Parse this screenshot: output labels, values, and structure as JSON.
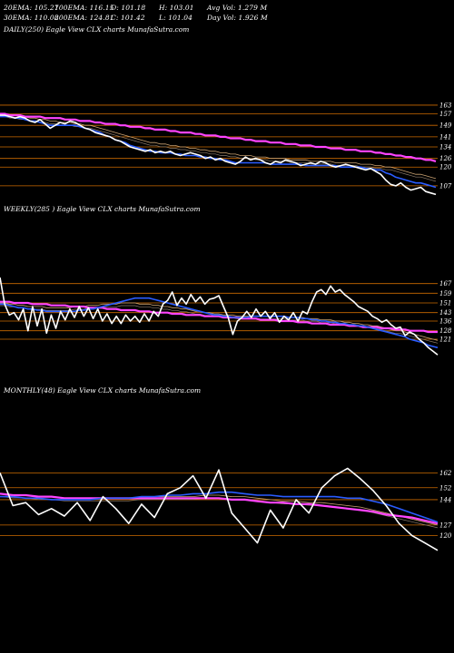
{
  "header": {
    "ema20": "20EMA: 105.27",
    "ema100": "100EMA: 116.15",
    "open": "O: 101.18",
    "high": "H: 103.01",
    "avg_vol": "Avg Vol: 1.279 M",
    "ema30": "30EMA: 110.08",
    "ema200": "200EMA: 124.81",
    "close": "C: 101.42",
    "low": "L: 101.04",
    "day_vol": "Day Vol: 1.926  M"
  },
  "panels": {
    "daily_title": "DAILY(250) Eagle  View  CLX  charts MunafaSutra.com",
    "weekly_title": "WEEKLY(285                    ) Eagle  View  CLX  charts MunafaSutra.com",
    "monthly_title": "MONTHLY(48) Eagle  View  CLX  charts MunafaSutra.com"
  },
  "colors": {
    "background": "#000000",
    "price": "#ffffff",
    "ema_fast": "#2a5cff",
    "ema_slow": "#ff44ff",
    "ema_mid": "#c8a070",
    "level_line": "#cc6a00"
  },
  "chart_data": [
    {
      "type": "line",
      "name": "daily",
      "ylim": [
        100,
        168
      ],
      "y_ticks": [
        163,
        157,
        149,
        141,
        134,
        126,
        120,
        107
      ],
      "series": [
        {
          "role": "price",
          "values": [
            156,
            156,
            155,
            154,
            155,
            154,
            152,
            151,
            153,
            150,
            147,
            149,
            151,
            150,
            152,
            151,
            149,
            147,
            146,
            144,
            143,
            142,
            141,
            139,
            138,
            136,
            134,
            133,
            132,
            131,
            132,
            130,
            131,
            130,
            131,
            129,
            128,
            129,
            130,
            129,
            128,
            126,
            127,
            125,
            126,
            124,
            123,
            122,
            124,
            127,
            125,
            126,
            125,
            123,
            122,
            124,
            123,
            125,
            124,
            123,
            121,
            122,
            123,
            122,
            124,
            123,
            121,
            120,
            121,
            122,
            121,
            120,
            119,
            118,
            119,
            117,
            115,
            111,
            108,
            107,
            109,
            106,
            104,
            105,
            106,
            103,
            102,
            101
          ]
        },
        {
          "role": "ema_fast",
          "values": [
            155,
            155,
            155,
            154,
            154,
            153,
            152,
            152,
            151,
            150,
            149,
            149,
            149,
            149,
            149,
            149,
            148,
            147,
            146,
            145,
            144,
            142,
            141,
            139,
            138,
            137,
            135,
            134,
            133,
            132,
            131,
            131,
            130,
            130,
            130,
            129,
            129,
            128,
            128,
            128,
            127,
            127,
            126,
            126,
            125,
            125,
            124,
            123,
            123,
            123,
            123,
            123,
            123,
            123,
            122,
            122,
            122,
            122,
            122,
            122,
            122,
            121,
            121,
            121,
            121,
            121,
            121,
            121,
            120,
            120,
            120,
            120,
            120,
            119,
            119,
            118,
            118,
            116,
            115,
            113,
            112,
            111,
            110,
            109,
            109,
            108,
            107,
            106
          ]
        },
        {
          "role": "ema_mid",
          "values": [
            157,
            157,
            156,
            156,
            155,
            155,
            154,
            154,
            153,
            153,
            152,
            152,
            151,
            151,
            151,
            150,
            150,
            149,
            149,
            148,
            147,
            146,
            145,
            144,
            143,
            142,
            141,
            140,
            139,
            138,
            137,
            137,
            136,
            136,
            135,
            135,
            134,
            134,
            133,
            133,
            132,
            132,
            131,
            131,
            130,
            130,
            129,
            129,
            128,
            128,
            128,
            127,
            127,
            127,
            126,
            126,
            126,
            126,
            125,
            125,
            125,
            125,
            124,
            124,
            124,
            124,
            124,
            123,
            123,
            123,
            123,
            123,
            122,
            122,
            122,
            121,
            121,
            120,
            120,
            119,
            118,
            117,
            116,
            115,
            115,
            114,
            113,
            112
          ]
        },
        {
          "role": "ema_slow",
          "values": [
            157,
            157,
            156,
            156,
            156,
            155,
            155,
            155,
            155,
            154,
            154,
            154,
            154,
            153,
            153,
            153,
            152,
            152,
            152,
            151,
            151,
            150,
            150,
            150,
            149,
            149,
            148,
            148,
            148,
            147,
            147,
            146,
            146,
            146,
            145,
            145,
            144,
            144,
            144,
            143,
            143,
            142,
            142,
            142,
            141,
            141,
            140,
            140,
            140,
            139,
            139,
            138,
            138,
            138,
            137,
            137,
            137,
            136,
            136,
            136,
            135,
            135,
            135,
            134,
            134,
            134,
            133,
            133,
            133,
            132,
            132,
            132,
            131,
            131,
            131,
            130,
            130,
            129,
            129,
            128,
            128,
            127,
            127,
            126,
            126,
            125,
            125,
            124
          ]
        }
      ]
    },
    {
      "type": "line",
      "name": "weekly",
      "ylim": [
        100,
        175
      ],
      "y_ticks": [
        167,
        159,
        151,
        143,
        136,
        128,
        121
      ],
      "series": [
        {
          "role": "price",
          "values": [
            172,
            150,
            141,
            143,
            137,
            146,
            128,
            148,
            132,
            146,
            126,
            141,
            130,
            144,
            137,
            146,
            139,
            148,
            140,
            147,
            138,
            146,
            136,
            142,
            134,
            140,
            134,
            141,
            136,
            140,
            135,
            142,
            136,
            144,
            140,
            150,
            153,
            160,
            149,
            155,
            150,
            158,
            152,
            156,
            150,
            154,
            155,
            157,
            148,
            139,
            125,
            136,
            139,
            144,
            139,
            146,
            140,
            144,
            138,
            143,
            135,
            140,
            137,
            143,
            136,
            144,
            142,
            152,
            160,
            162,
            158,
            165,
            160,
            162,
            158,
            155,
            152,
            148,
            146,
            144,
            140,
            138,
            135,
            137,
            133,
            130,
            131,
            124,
            127,
            125,
            121,
            118,
            114,
            111,
            108
          ]
        },
        {
          "role": "ema_fast",
          "values": [
            150,
            150,
            149,
            148,
            147,
            147,
            146,
            146,
            145,
            145,
            144,
            144,
            144,
            144,
            144,
            144,
            144,
            145,
            145,
            146,
            146,
            147,
            148,
            149,
            150,
            151,
            152,
            153,
            154,
            155,
            155,
            155,
            155,
            154,
            153,
            152,
            151,
            150,
            149,
            148,
            147,
            146,
            145,
            144,
            143,
            142,
            141,
            141,
            140,
            140,
            139,
            139,
            139,
            139,
            140,
            140,
            140,
            140,
            140,
            140,
            140,
            140,
            139,
            139,
            139,
            138,
            138,
            137,
            137,
            136,
            136,
            135,
            135,
            134,
            134,
            133,
            133,
            132,
            132,
            131,
            130,
            129,
            128,
            127,
            126,
            125,
            124,
            123,
            121,
            120,
            119,
            118,
            116,
            115,
            114
          ]
        },
        {
          "role": "ema_mid",
          "values": [
            151,
            151,
            150,
            150,
            149,
            149,
            148,
            148,
            148,
            148,
            147,
            147,
            147,
            147,
            147,
            147,
            148,
            148,
            148,
            149,
            149,
            149,
            150,
            150,
            150,
            150,
            151,
            151,
            151,
            151,
            150,
            150,
            150,
            149,
            149,
            148,
            148,
            147,
            147,
            146,
            146,
            145,
            144,
            144,
            143,
            143,
            142,
            142,
            141,
            141,
            141,
            140,
            140,
            140,
            140,
            140,
            140,
            140,
            140,
            140,
            140,
            140,
            139,
            139,
            139,
            139,
            138,
            138,
            138,
            137,
            137,
            137,
            136,
            136,
            135,
            135,
            134,
            134,
            133,
            133,
            132,
            132,
            131,
            130,
            129,
            128,
            128,
            127,
            126,
            125,
            124,
            123,
            122,
            121,
            120
          ]
        },
        {
          "role": "ema_slow",
          "values": [
            152,
            152,
            152,
            151,
            151,
            151,
            151,
            150,
            150,
            150,
            150,
            149,
            149,
            149,
            149,
            148,
            148,
            148,
            148,
            147,
            147,
            147,
            147,
            146,
            146,
            146,
            145,
            145,
            145,
            145,
            144,
            144,
            144,
            143,
            143,
            143,
            143,
            142,
            142,
            142,
            141,
            141,
            141,
            141,
            140,
            140,
            140,
            140,
            139,
            139,
            139,
            139,
            138,
            138,
            138,
            138,
            137,
            137,
            137,
            137,
            136,
            136,
            136,
            136,
            135,
            135,
            135,
            134,
            134,
            134,
            134,
            133,
            133,
            133,
            133,
            132,
            132,
            132,
            131,
            131,
            131,
            131,
            130,
            130,
            130,
            129,
            129,
            129,
            128,
            128,
            128,
            128,
            127,
            127,
            127
          ]
        }
      ]
    },
    {
      "type": "line",
      "name": "monthly",
      "ylim": [
        105,
        175
      ],
      "y_ticks": [
        162,
        152,
        144,
        127,
        120
      ],
      "series": [
        {
          "role": "price",
          "values": [
            162,
            140,
            142,
            134,
            138,
            133,
            142,
            130,
            146,
            138,
            128,
            141,
            132,
            148,
            152,
            160,
            145,
            164,
            135,
            125,
            115,
            137,
            125,
            144,
            135,
            152,
            160,
            165,
            158,
            150,
            140,
            128,
            120,
            115,
            110
          ]
        },
        {
          "role": "ema_fast",
          "values": [
            146,
            146,
            145,
            145,
            144,
            144,
            144,
            144,
            145,
            145,
            145,
            146,
            146,
            147,
            147,
            148,
            148,
            149,
            149,
            148,
            147,
            147,
            146,
            146,
            146,
            146,
            146,
            145,
            145,
            143,
            141,
            138,
            135,
            132,
            129
          ]
        },
        {
          "role": "ema_mid",
          "values": [
            148,
            147,
            147,
            146,
            146,
            145,
            145,
            145,
            145,
            145,
            145,
            146,
            146,
            146,
            146,
            146,
            147,
            147,
            146,
            146,
            145,
            144,
            143,
            143,
            142,
            142,
            141,
            140,
            139,
            137,
            135,
            133,
            131,
            129,
            127
          ]
        },
        {
          "role": "ema_slow",
          "values": [
            148,
            147,
            147,
            146,
            146,
            145,
            145,
            145,
            145,
            145,
            145,
            145,
            145,
            145,
            145,
            145,
            145,
            145,
            144,
            144,
            143,
            142,
            142,
            141,
            141,
            140,
            139,
            138,
            137,
            136,
            134,
            133,
            132,
            130,
            128
          ]
        }
      ]
    }
  ]
}
